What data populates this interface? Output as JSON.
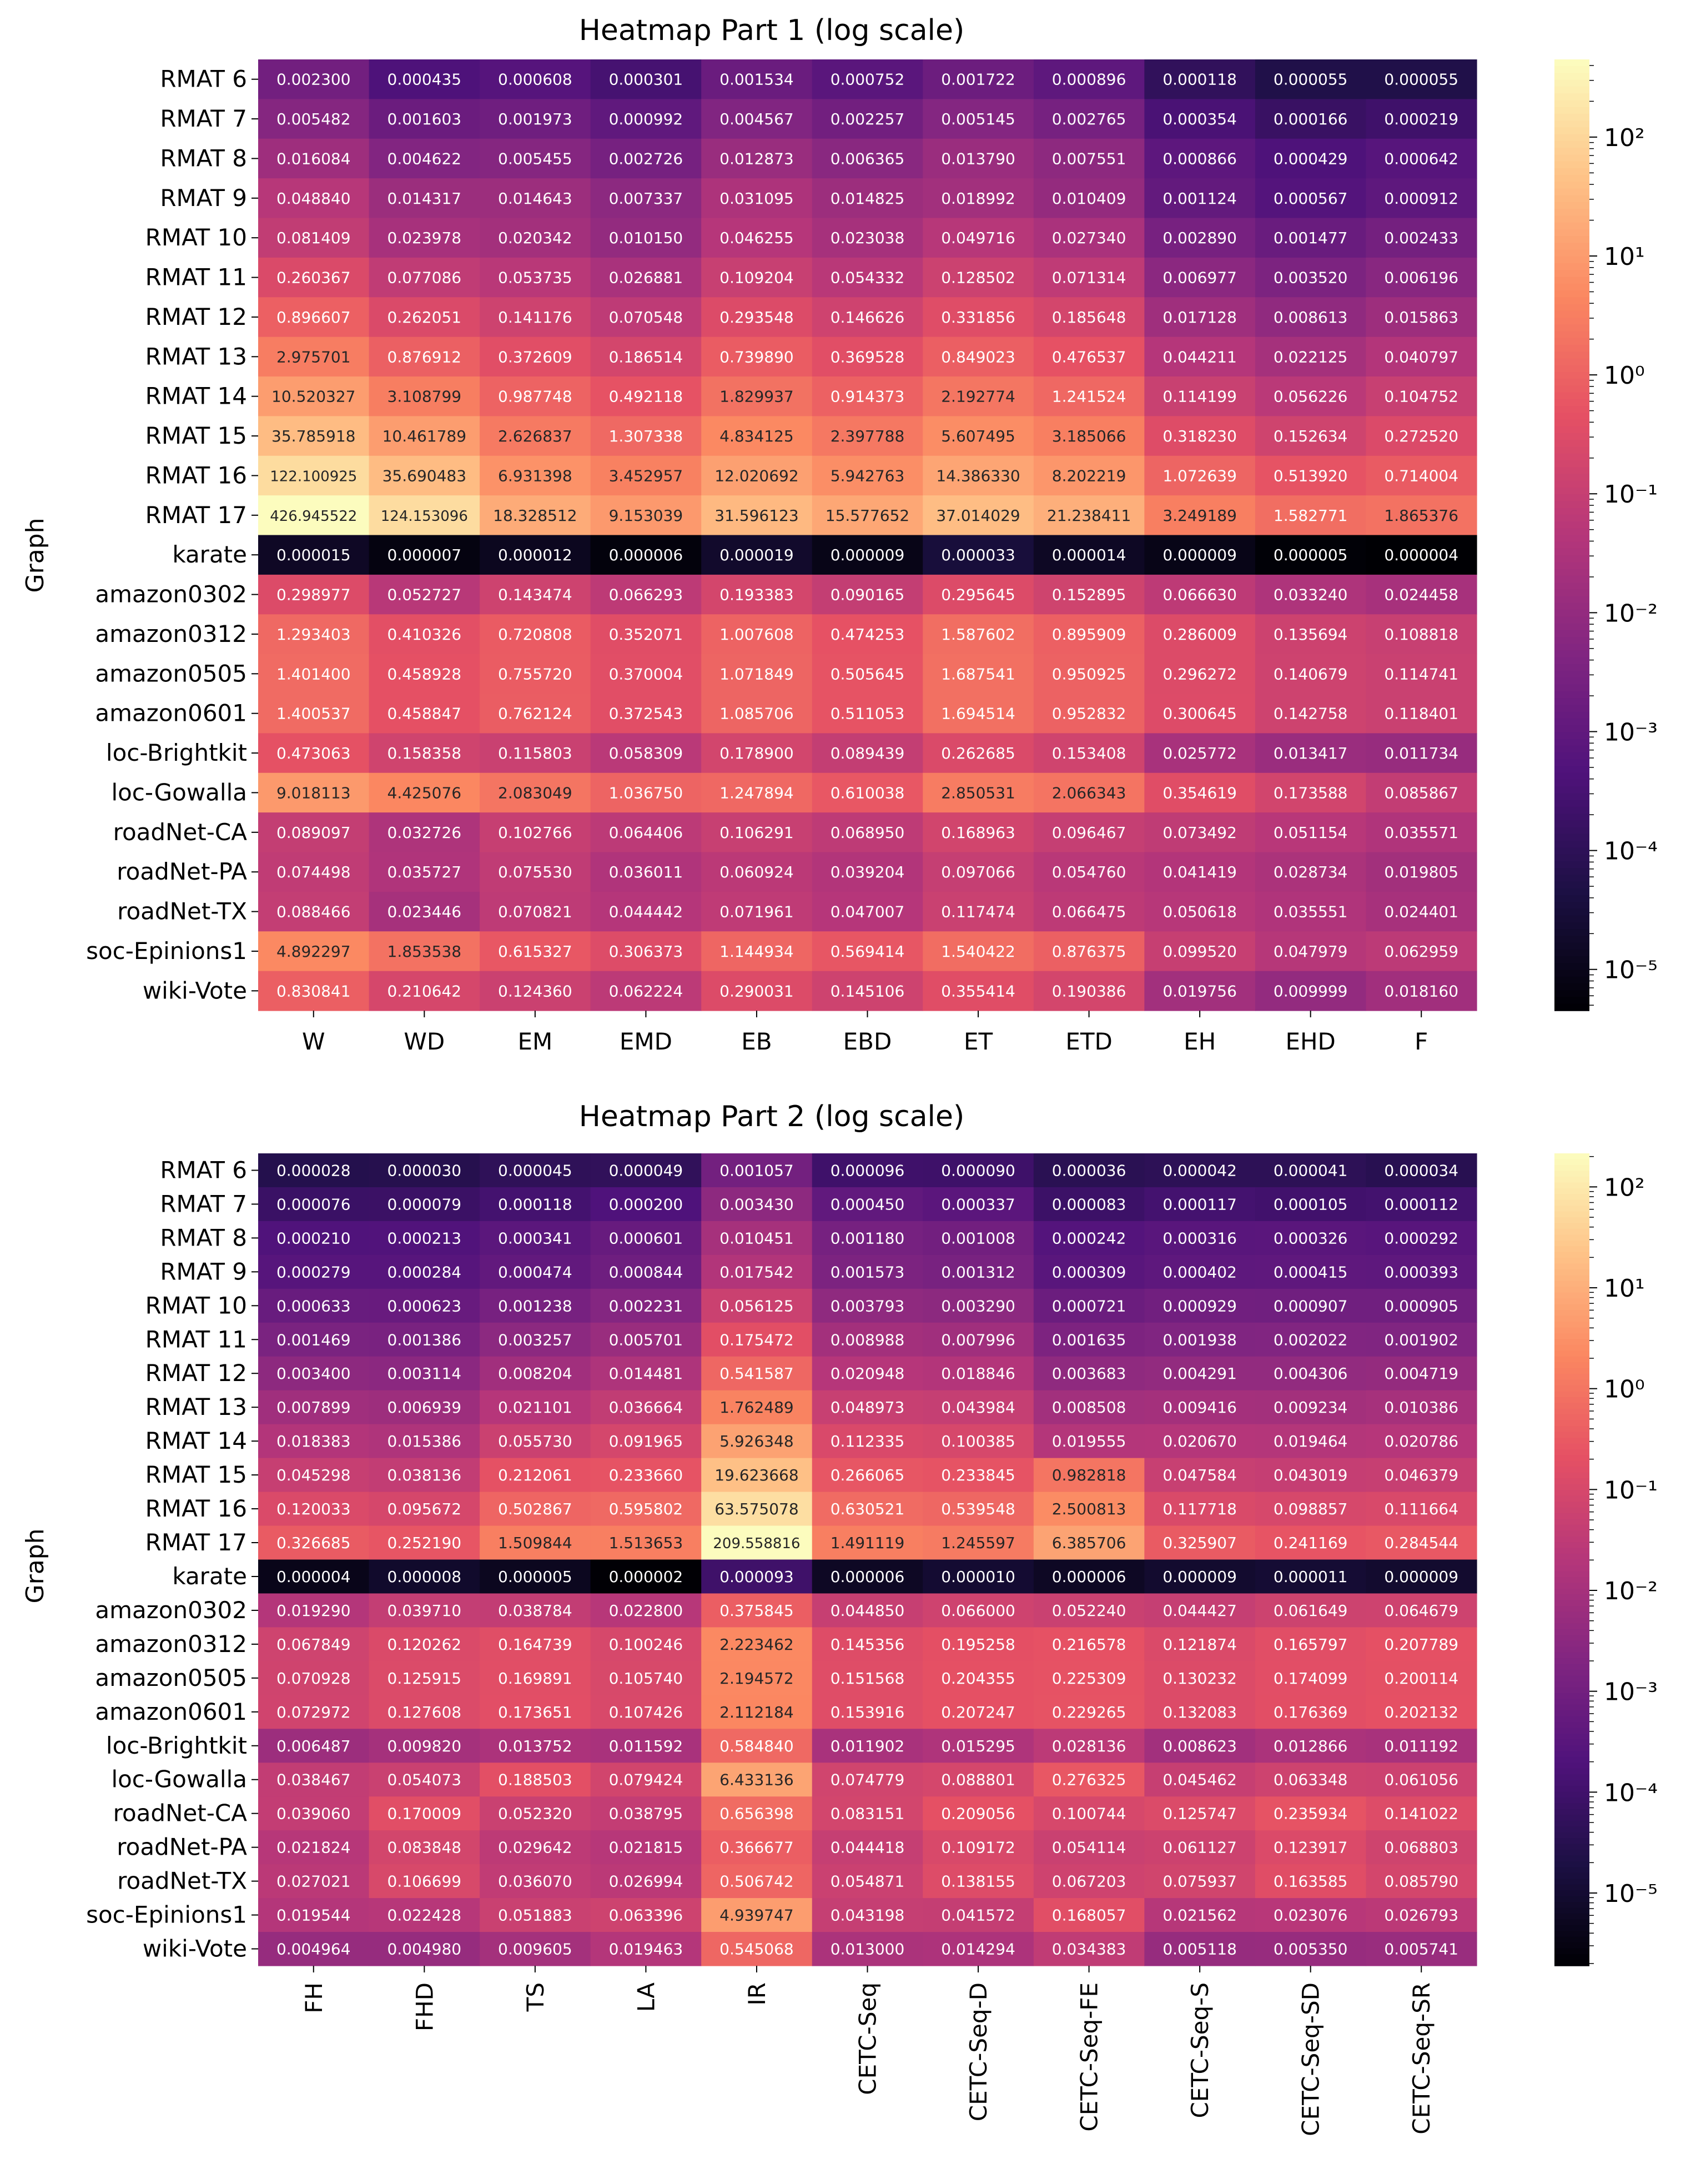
{
  "chart_data": [
    {
      "type": "heatmap",
      "title": "Heatmap Part 1 (log scale)",
      "ylabel": "Graph",
      "xlabel": "",
      "rows": [
        "RMAT 6",
        "RMAT 7",
        "RMAT 8",
        "RMAT 9",
        "RMAT 10",
        "RMAT 11",
        "RMAT 12",
        "RMAT 13",
        "RMAT 14",
        "RMAT 15",
        "RMAT 16",
        "RMAT 17",
        "karate",
        "amazon0302",
        "amazon0312",
        "amazon0505",
        "amazon0601",
        "loc-Brightkit",
        "loc-Gowalla",
        "roadNet-CA",
        "roadNet-PA",
        "roadNet-TX",
        "soc-Epinions1",
        "wiki-Vote"
      ],
      "columns": [
        "W",
        "WD",
        "EM",
        "EMD",
        "EB",
        "EBD",
        "ET",
        "ETD",
        "EH",
        "EHD",
        "F"
      ],
      "values": [
        [
          "0.002300",
          "0.000435",
          "0.000608",
          "0.000301",
          "0.001534",
          "0.000752",
          "0.001722",
          "0.000896",
          "0.000118",
          "0.000055",
          "0.000055"
        ],
        [
          "0.005482",
          "0.001603",
          "0.001973",
          "0.000992",
          "0.004567",
          "0.002257",
          "0.005145",
          "0.002765",
          "0.000354",
          "0.000166",
          "0.000219"
        ],
        [
          "0.016084",
          "0.004622",
          "0.005455",
          "0.002726",
          "0.012873",
          "0.006365",
          "0.013790",
          "0.007551",
          "0.000866",
          "0.000429",
          "0.000642"
        ],
        [
          "0.048840",
          "0.014317",
          "0.014643",
          "0.007337",
          "0.031095",
          "0.014825",
          "0.018992",
          "0.010409",
          "0.001124",
          "0.000567",
          "0.000912"
        ],
        [
          "0.081409",
          "0.023978",
          "0.020342",
          "0.010150",
          "0.046255",
          "0.023038",
          "0.049716",
          "0.027340",
          "0.002890",
          "0.001477",
          "0.002433"
        ],
        [
          "0.260367",
          "0.077086",
          "0.053735",
          "0.026881",
          "0.109204",
          "0.054332",
          "0.128502",
          "0.071314",
          "0.006977",
          "0.003520",
          "0.006196"
        ],
        [
          "0.896607",
          "0.262051",
          "0.141176",
          "0.070548",
          "0.293548",
          "0.146626",
          "0.331856",
          "0.185648",
          "0.017128",
          "0.008613",
          "0.015863"
        ],
        [
          "2.975701",
          "0.876912",
          "0.372609",
          "0.186514",
          "0.739890",
          "0.369528",
          "0.849023",
          "0.476537",
          "0.044211",
          "0.022125",
          "0.040797"
        ],
        [
          "10.520327",
          "3.108799",
          "0.987748",
          "0.492118",
          "1.829937",
          "0.914373",
          "2.192774",
          "1.241524",
          "0.114199",
          "0.056226",
          "0.104752"
        ],
        [
          "35.785918",
          "10.461789",
          "2.626837",
          "1.307338",
          "4.834125",
          "2.397788",
          "5.607495",
          "3.185066",
          "0.318230",
          "0.152634",
          "0.272520"
        ],
        [
          "122.100925",
          "35.690483",
          "6.931398",
          "3.452957",
          "12.020692",
          "5.942763",
          "14.386330",
          "8.202219",
          "1.072639",
          "0.513920",
          "0.714004"
        ],
        [
          "426.945522",
          "124.153096",
          "18.328512",
          "9.153039",
          "31.596123",
          "15.577652",
          "37.014029",
          "21.238411",
          "3.249189",
          "1.582771",
          "1.865376"
        ],
        [
          "0.000015",
          "0.000007",
          "0.000012",
          "0.000006",
          "0.000019",
          "0.000009",
          "0.000033",
          "0.000014",
          "0.000009",
          "0.000005",
          "0.000004"
        ],
        [
          "0.298977",
          "0.052727",
          "0.143474",
          "0.066293",
          "0.193383",
          "0.090165",
          "0.295645",
          "0.152895",
          "0.066630",
          "0.033240",
          "0.024458"
        ],
        [
          "1.293403",
          "0.410326",
          "0.720808",
          "0.352071",
          "1.007608",
          "0.474253",
          "1.587602",
          "0.895909",
          "0.286009",
          "0.135694",
          "0.108818"
        ],
        [
          "1.401400",
          "0.458928",
          "0.755720",
          "0.370004",
          "1.071849",
          "0.505645",
          "1.687541",
          "0.950925",
          "0.296272",
          "0.140679",
          "0.114741"
        ],
        [
          "1.400537",
          "0.458847",
          "0.762124",
          "0.372543",
          "1.085706",
          "0.511053",
          "1.694514",
          "0.952832",
          "0.300645",
          "0.142758",
          "0.118401"
        ],
        [
          "0.473063",
          "0.158358",
          "0.115803",
          "0.058309",
          "0.178900",
          "0.089439",
          "0.262685",
          "0.153408",
          "0.025772",
          "0.013417",
          "0.011734"
        ],
        [
          "9.018113",
          "4.425076",
          "2.083049",
          "1.036750",
          "1.247894",
          "0.610038",
          "2.850531",
          "2.066343",
          "0.354619",
          "0.173588",
          "0.085867"
        ],
        [
          "0.089097",
          "0.032726",
          "0.102766",
          "0.064406",
          "0.106291",
          "0.068950",
          "0.168963",
          "0.096467",
          "0.073492",
          "0.051154",
          "0.035571"
        ],
        [
          "0.074498",
          "0.035727",
          "0.075530",
          "0.036011",
          "0.060924",
          "0.039204",
          "0.097066",
          "0.054760",
          "0.041419",
          "0.028734",
          "0.019805"
        ],
        [
          "0.088466",
          "0.023446",
          "0.070821",
          "0.044442",
          "0.071961",
          "0.047007",
          "0.117474",
          "0.066475",
          "0.050618",
          "0.035551",
          "0.024401"
        ],
        [
          "4.892297",
          "1.853538",
          "0.615327",
          "0.306373",
          "1.144934",
          "0.569414",
          "1.540422",
          "0.876375",
          "0.099520",
          "0.047979",
          "0.062959"
        ],
        [
          "0.830841",
          "0.210642",
          "0.124360",
          "0.062224",
          "0.290031",
          "0.145106",
          "0.355414",
          "0.190386",
          "0.019756",
          "0.009999",
          "0.018160"
        ]
      ],
      "colorbar": {
        "scale": "log",
        "colormap": "magma",
        "range": [
          4.5e-06,
          450
        ],
        "tick_exponents": [
          2,
          1,
          0,
          -1,
          -2,
          -3,
          -4,
          -5
        ]
      }
    },
    {
      "type": "heatmap",
      "title": "Heatmap Part 2 (log scale)",
      "ylabel": "Graph",
      "xlabel": "",
      "rows": [
        "RMAT 6",
        "RMAT 7",
        "RMAT 8",
        "RMAT 9",
        "RMAT 10",
        "RMAT 11",
        "RMAT 12",
        "RMAT 13",
        "RMAT 14",
        "RMAT 15",
        "RMAT 16",
        "RMAT 17",
        "karate",
        "amazon0302",
        "amazon0312",
        "amazon0505",
        "amazon0601",
        "loc-Brightkit",
        "loc-Gowalla",
        "roadNet-CA",
        "roadNet-PA",
        "roadNet-TX",
        "soc-Epinions1",
        "wiki-Vote"
      ],
      "columns": [
        "FH",
        "FHD",
        "TS",
        "LA",
        "IR",
        "CETC-Seq",
        "CETC-Seq-D",
        "CETC-Seq-FE",
        "CETC-Seq-S",
        "CETC-Seq-SD",
        "CETC-Seq-SR"
      ],
      "values": [
        [
          "0.000028",
          "0.000030",
          "0.000045",
          "0.000049",
          "0.001057",
          "0.000096",
          "0.000090",
          "0.000036",
          "0.000042",
          "0.000041",
          "0.000034"
        ],
        [
          "0.000076",
          "0.000079",
          "0.000118",
          "0.000200",
          "0.003430",
          "0.000450",
          "0.000337",
          "0.000083",
          "0.000117",
          "0.000105",
          "0.000112"
        ],
        [
          "0.000210",
          "0.000213",
          "0.000341",
          "0.000601",
          "0.010451",
          "0.001180",
          "0.001008",
          "0.000242",
          "0.000316",
          "0.000326",
          "0.000292"
        ],
        [
          "0.000279",
          "0.000284",
          "0.000474",
          "0.000844",
          "0.017542",
          "0.001573",
          "0.001312",
          "0.000309",
          "0.000402",
          "0.000415",
          "0.000393"
        ],
        [
          "0.000633",
          "0.000623",
          "0.001238",
          "0.002231",
          "0.056125",
          "0.003793",
          "0.003290",
          "0.000721",
          "0.000929",
          "0.000907",
          "0.000905"
        ],
        [
          "0.001469",
          "0.001386",
          "0.003257",
          "0.005701",
          "0.175472",
          "0.008988",
          "0.007996",
          "0.001635",
          "0.001938",
          "0.002022",
          "0.001902"
        ],
        [
          "0.003400",
          "0.003114",
          "0.008204",
          "0.014481",
          "0.541587",
          "0.020948",
          "0.018846",
          "0.003683",
          "0.004291",
          "0.004306",
          "0.004719"
        ],
        [
          "0.007899",
          "0.006939",
          "0.021101",
          "0.036664",
          "1.762489",
          "0.048973",
          "0.043984",
          "0.008508",
          "0.009416",
          "0.009234",
          "0.010386"
        ],
        [
          "0.018383",
          "0.015386",
          "0.055730",
          "0.091965",
          "5.926348",
          "0.112335",
          "0.100385",
          "0.019555",
          "0.020670",
          "0.019464",
          "0.020786"
        ],
        [
          "0.045298",
          "0.038136",
          "0.212061",
          "0.233660",
          "19.623668",
          "0.266065",
          "0.233845",
          "0.982818",
          "0.047584",
          "0.043019",
          "0.046379"
        ],
        [
          "0.120033",
          "0.095672",
          "0.502867",
          "0.595802",
          "63.575078",
          "0.630521",
          "0.539548",
          "2.500813",
          "0.117718",
          "0.098857",
          "0.111664"
        ],
        [
          "0.326685",
          "0.252190",
          "1.509844",
          "1.513653",
          "209.558816",
          "1.491119",
          "1.245597",
          "6.385706",
          "0.325907",
          "0.241169",
          "0.284544"
        ],
        [
          "0.000004",
          "0.000008",
          "0.000005",
          "0.000002",
          "0.000093",
          "0.000006",
          "0.000010",
          "0.000006",
          "0.000009",
          "0.000011",
          "0.000009"
        ],
        [
          "0.019290",
          "0.039710",
          "0.038784",
          "0.022800",
          "0.375845",
          "0.044850",
          "0.066000",
          "0.052240",
          "0.044427",
          "0.061649",
          "0.064679"
        ],
        [
          "0.067849",
          "0.120262",
          "0.164739",
          "0.100246",
          "2.223462",
          "0.145356",
          "0.195258",
          "0.216578",
          "0.121874",
          "0.165797",
          "0.207789"
        ],
        [
          "0.070928",
          "0.125915",
          "0.169891",
          "0.105740",
          "2.194572",
          "0.151568",
          "0.204355",
          "0.225309",
          "0.130232",
          "0.174099",
          "0.200114"
        ],
        [
          "0.072972",
          "0.127608",
          "0.173651",
          "0.107426",
          "2.112184",
          "0.153916",
          "0.207247",
          "0.229265",
          "0.132083",
          "0.176369",
          "0.202132"
        ],
        [
          "0.006487",
          "0.009820",
          "0.013752",
          "0.011592",
          "0.584840",
          "0.011902",
          "0.015295",
          "0.028136",
          "0.008623",
          "0.012866",
          "0.011192"
        ],
        [
          "0.038467",
          "0.054073",
          "0.188503",
          "0.079424",
          "6.433136",
          "0.074779",
          "0.088801",
          "0.276325",
          "0.045462",
          "0.063348",
          "0.061056"
        ],
        [
          "0.039060",
          "0.170009",
          "0.052320",
          "0.038795",
          "0.656398",
          "0.083151",
          "0.209056",
          "0.100744",
          "0.125747",
          "0.235934",
          "0.141022"
        ],
        [
          "0.021824",
          "0.083848",
          "0.029642",
          "0.021815",
          "0.366677",
          "0.044418",
          "0.109172",
          "0.054114",
          "0.061127",
          "0.123917",
          "0.068803"
        ],
        [
          "0.027021",
          "0.106699",
          "0.036070",
          "0.026994",
          "0.506742",
          "0.054871",
          "0.138155",
          "0.067203",
          "0.075937",
          "0.163585",
          "0.085790"
        ],
        [
          "0.019544",
          "0.022428",
          "0.051883",
          "0.063396",
          "4.939747",
          "0.043198",
          "0.041572",
          "0.168057",
          "0.021562",
          "0.023076",
          "0.026793"
        ],
        [
          "0.004964",
          "0.004980",
          "0.009605",
          "0.019463",
          "0.545068",
          "0.013000",
          "0.014294",
          "0.034383",
          "0.005118",
          "0.005350",
          "0.005741"
        ]
      ],
      "colorbar": {
        "scale": "log",
        "colormap": "magma",
        "range": [
          1.9e-06,
          215
        ],
        "tick_exponents": [
          2,
          1,
          0,
          -1,
          -2,
          -3,
          -4,
          -5
        ]
      }
    }
  ]
}
